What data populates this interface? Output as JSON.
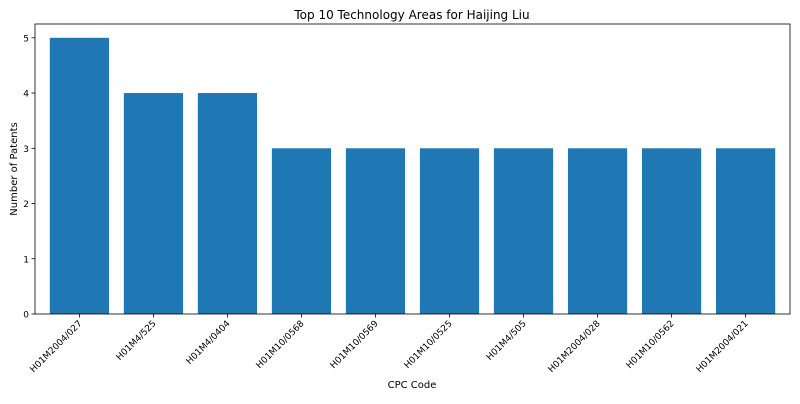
{
  "chart_data": {
    "type": "bar",
    "title": "Top 10 Technology Areas for Haijing Liu",
    "xlabel": "CPC Code",
    "ylabel": "Number of Patents",
    "categories": [
      "H01M2004/027",
      "H01M4/525",
      "H01M4/0404",
      "H01M10/0568",
      "H01M10/0569",
      "H01M10/0525",
      "H01M4/505",
      "H01M2004/028",
      "H01M10/0562",
      "H01M2004/021"
    ],
    "values": [
      5,
      4,
      4,
      3,
      3,
      3,
      3,
      3,
      3,
      3
    ],
    "ylim": [
      0,
      5.25
    ],
    "yticks": [
      0,
      1,
      2,
      3,
      4,
      5
    ],
    "grid": false,
    "bar_color": "#1f77b4"
  }
}
